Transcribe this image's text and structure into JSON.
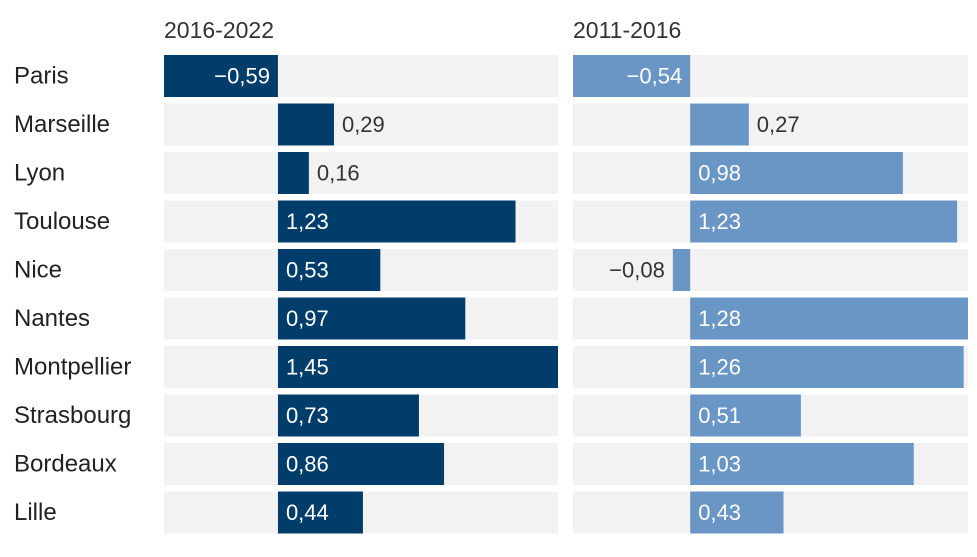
{
  "chart_data": [
    {
      "type": "bar",
      "orientation": "horizontal",
      "title": "2016-2022",
      "categories": [
        "Paris",
        "Marseille",
        "Lyon",
        "Toulouse",
        "Nice",
        "Nantes",
        "Montpellier",
        "Strasbourg",
        "Bordeaux",
        "Lille"
      ],
      "values": [
        -0.59,
        0.29,
        0.16,
        1.23,
        0.53,
        0.97,
        1.45,
        0.73,
        0.86,
        0.44
      ],
      "value_labels": [
        "−0,59",
        "0,29",
        "0,16",
        "1,23",
        "0,53",
        "0,97",
        "1,45",
        "0,73",
        "0,86",
        "0,44"
      ],
      "xlim": [
        -0.59,
        1.45
      ],
      "bar_color": "#003d6a",
      "background_color": "#f2f2f2"
    },
    {
      "type": "bar",
      "orientation": "horizontal",
      "title": "2011-2016",
      "categories": [
        "Paris",
        "Marseille",
        "Lyon",
        "Toulouse",
        "Nice",
        "Nantes",
        "Montpellier",
        "Strasbourg",
        "Bordeaux",
        "Lille"
      ],
      "values": [
        -0.54,
        0.27,
        0.98,
        1.23,
        -0.08,
        1.28,
        1.26,
        0.51,
        1.03,
        0.43
      ],
      "value_labels": [
        "−0,54",
        "0,27",
        "0,98",
        "1,23",
        "−0,08",
        "1,28",
        "1,26",
        "0,51",
        "1,03",
        "0,43"
      ],
      "xlim": [
        -0.54,
        1.28
      ],
      "bar_color": "#6a96c6",
      "background_color": "#f2f2f2"
    }
  ],
  "colors": {
    "label_inside": "#ffffff",
    "label_outside": "#333333",
    "category_text": "#222222"
  }
}
